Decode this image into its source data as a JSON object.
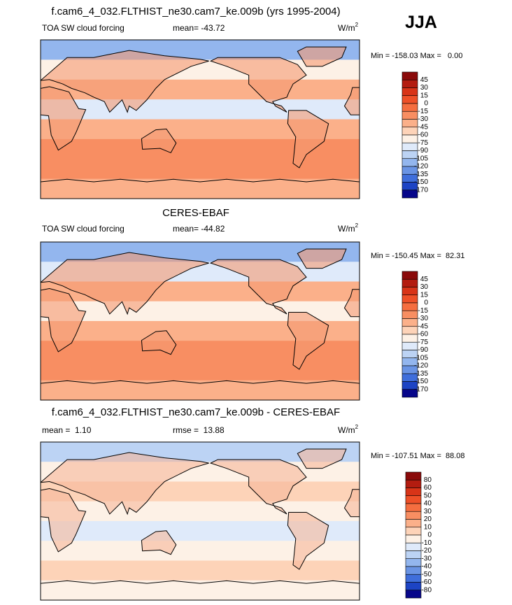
{
  "season": "JJA",
  "panels": [
    {
      "title": "f.cam6_4_032.FLTHIST_ne30.cam7_ke.009b (yrs 1995-2004)",
      "left": "TOA SW cloud forcing",
      "center": "mean= -43.72",
      "units": {
        "base": "W/m",
        "sup": "2"
      },
      "minmax": "Min = -158.03 Max =   0.00",
      "colorbar": {
        "labels": [
          45,
          30,
          15,
          0,
          -15,
          -30,
          -45,
          -60,
          -75,
          -90,
          -105,
          -120,
          -135,
          -150,
          -170
        ]
      }
    },
    {
      "title": "CERES-EBAF",
      "left": "TOA SW cloud forcing",
      "center": "mean= -44.82",
      "units": {
        "base": "W/m",
        "sup": "2"
      },
      "minmax": "Min = -150.45 Max =  82.31",
      "colorbar": {
        "labels": [
          45,
          30,
          15,
          0,
          -15,
          -30,
          -45,
          -60,
          -75,
          -90,
          -105,
          -120,
          -135,
          -150,
          -170
        ]
      }
    },
    {
      "title": "f.cam6_4_032.FLTHIST_ne30.cam7_ke.009b - CERES-EBAF",
      "left": "mean =  1.10",
      "center": "rmse =  13.88",
      "units": {
        "base": "W/m",
        "sup": "2"
      },
      "minmax": "Min = -107.51 Max =  88.08",
      "colorbar": {
        "labels": [
          80,
          60,
          50,
          40,
          30,
          20,
          10,
          0,
          -10,
          -20,
          -30,
          -40,
          -50,
          -60,
          -80
        ]
      }
    }
  ]
}
